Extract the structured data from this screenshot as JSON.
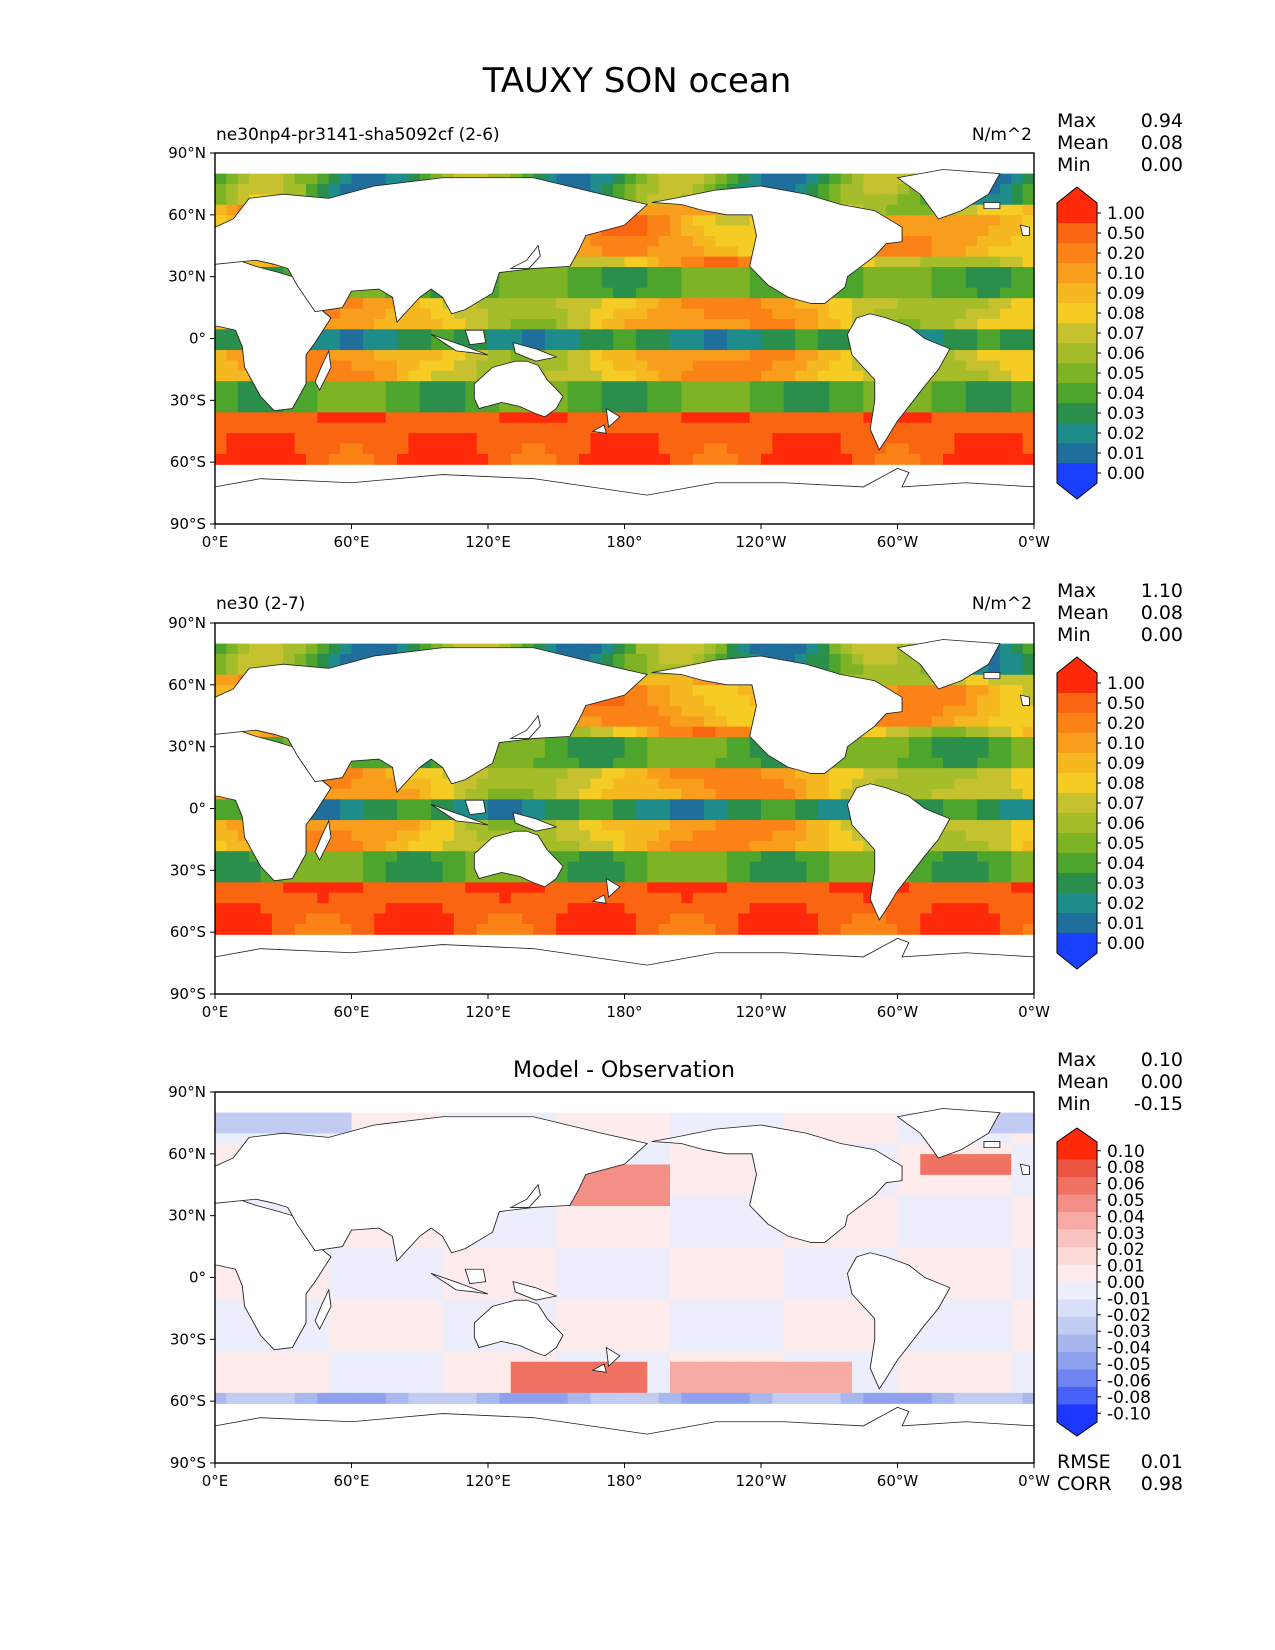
{
  "figure": {
    "title": "TAUXY SON ocean"
  },
  "colors": {
    "test_ref_scale": [
      "#1a40ff",
      "#1f6e9c",
      "#1f8c8c",
      "#2a8f4a",
      "#4ea52d",
      "#7db324",
      "#a6bd2b",
      "#c6c22f",
      "#f4cc24",
      "#f5b821",
      "#f89e1c",
      "#fb8216",
      "#f96510",
      "#ff2a0a"
    ],
    "diff_scale": [
      "#1c38ff",
      "#4660f8",
      "#6e84f0",
      "#8ea0ee",
      "#a9b7ef",
      "#c2ccf3",
      "#d9dff8",
      "#eceffb",
      "#fdeceb",
      "#fbd9d7",
      "#f9c3bf",
      "#f6aaa3",
      "#f38f86",
      "#ef7262",
      "#ea5440",
      "#ff2a0a"
    ],
    "land": "#ffffff",
    "coast": "#222222"
  },
  "chart_data": [
    {
      "type": "heatmap",
      "subtitle_left": "ne30np4-pr3141-sha5092cf (2-6)",
      "subtitle_right": "N/m^2",
      "xlabels": [
        "0°E",
        "60°E",
        "120°E",
        "180°",
        "120°W",
        "60°W",
        "0°W"
      ],
      "ylabels": [
        "90°N",
        "60°N",
        "30°N",
        "0°",
        "30°S",
        "60°S",
        "90°S"
      ],
      "stats": [
        {
          "label": "Max",
          "value": "0.94"
        },
        {
          "label": "Mean",
          "value": "0.08"
        },
        {
          "label": "Min",
          "value": "0.00"
        }
      ],
      "colorbar_ticks": [
        "1.00",
        "0.50",
        "0.20",
        "0.10",
        "0.09",
        "0.08",
        "0.07",
        "0.06",
        "0.05",
        "0.04",
        "0.03",
        "0.02",
        "0.01",
        "0.00"
      ]
    },
    {
      "type": "heatmap",
      "subtitle_left": "ne30 (2-7)",
      "subtitle_right": "N/m^2",
      "xlabels": [
        "0°E",
        "60°E",
        "120°E",
        "180°",
        "120°W",
        "60°W",
        "0°W"
      ],
      "ylabels": [
        "90°N",
        "60°N",
        "30°N",
        "0°",
        "30°S",
        "60°S",
        "90°S"
      ],
      "stats": [
        {
          "label": "Max",
          "value": "1.10"
        },
        {
          "label": "Mean",
          "value": "0.08"
        },
        {
          "label": "Min",
          "value": "0.00"
        }
      ],
      "colorbar_ticks": [
        "1.00",
        "0.50",
        "0.20",
        "0.10",
        "0.09",
        "0.08",
        "0.07",
        "0.06",
        "0.05",
        "0.04",
        "0.03",
        "0.02",
        "0.01",
        "0.00"
      ]
    },
    {
      "type": "heatmap",
      "title": "Model - Observation",
      "xlabels": [
        "0°E",
        "60°E",
        "120°E",
        "180°",
        "120°W",
        "60°W",
        "0°W"
      ],
      "ylabels": [
        "90°N",
        "60°N",
        "30°N",
        "0°",
        "30°S",
        "60°S",
        "90°S"
      ],
      "stats": [
        {
          "label": "Max",
          "value": "0.10"
        },
        {
          "label": "Mean",
          "value": "0.00"
        },
        {
          "label": "Min",
          "value": "-0.15"
        }
      ],
      "colorbar_ticks": [
        "0.10",
        "0.08",
        "0.06",
        "0.05",
        "0.04",
        "0.03",
        "0.02",
        "0.01",
        "0.00",
        "-0.01",
        "-0.02",
        "-0.03",
        "-0.04",
        "-0.05",
        "-0.06",
        "-0.08",
        "-0.10"
      ],
      "metrics": [
        {
          "label": "RMSE",
          "value": "0.01"
        },
        {
          "label": "CORR",
          "value": "0.98"
        }
      ]
    }
  ]
}
